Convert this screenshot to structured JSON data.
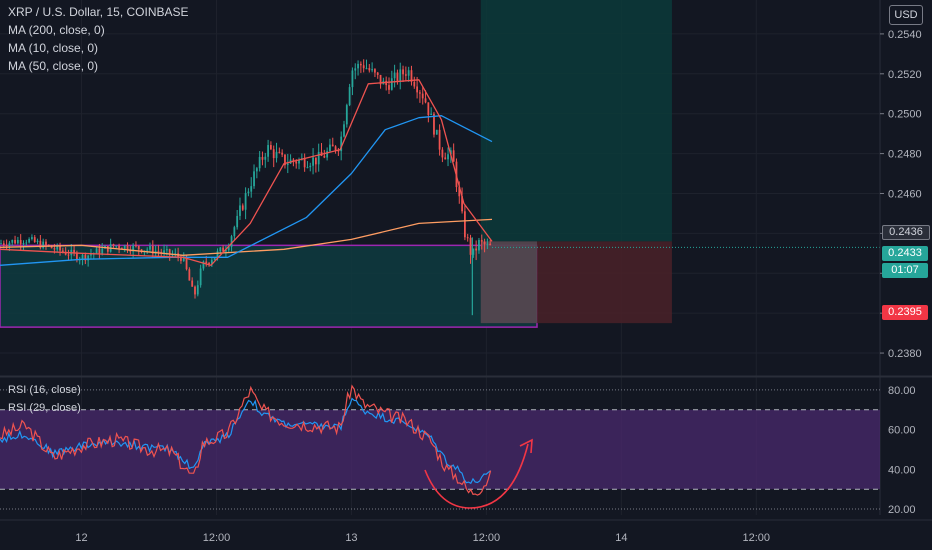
{
  "header": {
    "symbol": "XRP / U.S. Dollar, 15, COINBASE",
    "indicators": [
      "MA (200, close, 0)",
      "MA (10, close, 0)",
      "MA (50, close, 0)"
    ],
    "currency_button": "USD"
  },
  "rsi_legend": [
    "RSI (16, close)",
    "RSI (29, close)"
  ],
  "price_tags": {
    "target": "0.2436",
    "last": "0.2433",
    "countdown": "01:07",
    "stop": "0.2395"
  },
  "colors": {
    "background": "#131722",
    "up_candle": "#26a69a",
    "down_candle": "#ef5350",
    "ma10": "#ef5350",
    "ma50": "#2196f3",
    "ma200": "#ff9d62",
    "rsi_fill": "#4a2a6e",
    "zone_border": "#9c27b0",
    "annotation": "#f23645"
  },
  "chart_data": [
    {
      "type": "candlestick",
      "title": "XRP / U.S. Dollar, 15, COINBASE",
      "x_tick_labels": [
        "12",
        "12:00",
        "13",
        "12:00",
        "14",
        "12:00"
      ],
      "x_range": [
        "2020-06-11T16:45",
        "2020-06-14T23:00"
      ],
      "y_ticks": [
        0.238,
        0.24,
        0.242,
        0.244,
        0.246,
        0.248,
        0.25,
        0.252,
        0.254
      ],
      "y_tick_labels": [
        "0.2380",
        "0.2400",
        "0.2420",
        "0.2440",
        "0.2460",
        "0.2480",
        "0.2500",
        "0.2520",
        "0.2540"
      ],
      "ylim": [
        0.2369,
        0.2557
      ],
      "close_waypoints": [
        {
          "x": "2020-06-11T16:45",
          "y": 0.2435
        },
        {
          "x": "2020-06-11T19:00",
          "y": 0.2437
        },
        {
          "x": "2020-06-12T00:00",
          "y": 0.2428
        },
        {
          "x": "2020-06-12T03:00",
          "y": 0.2434
        },
        {
          "x": "2020-06-12T06:00",
          "y": 0.2432
        },
        {
          "x": "2020-06-12T09:00",
          "y": 0.2428
        },
        {
          "x": "2020-06-12T10:00",
          "y": 0.2408
        },
        {
          "x": "2020-06-12T10:45",
          "y": 0.2424
        },
        {
          "x": "2020-06-12T13:00",
          "y": 0.2434
        },
        {
          "x": "2020-06-12T15:00",
          "y": 0.2465
        },
        {
          "x": "2020-06-12T16:30",
          "y": 0.2483
        },
        {
          "x": "2020-06-12T18:00",
          "y": 0.2476
        },
        {
          "x": "2020-06-12T21:00",
          "y": 0.2477
        },
        {
          "x": "2020-06-12T23:00",
          "y": 0.2485
        },
        {
          "x": "2020-06-13T00:00",
          "y": 0.2522
        },
        {
          "x": "2020-06-13T01:00",
          "y": 0.2525
        },
        {
          "x": "2020-06-13T03:00",
          "y": 0.2514
        },
        {
          "x": "2020-06-13T05:00",
          "y": 0.2522
        },
        {
          "x": "2020-06-13T06:30",
          "y": 0.2508
        },
        {
          "x": "2020-06-13T08:00",
          "y": 0.2481
        },
        {
          "x": "2020-06-13T09:00",
          "y": 0.2478
        },
        {
          "x": "2020-06-13T10:00",
          "y": 0.2442
        },
        {
          "x": "2020-06-13T10:45",
          "y": 0.2428
        },
        {
          "x": "2020-06-13T11:15",
          "y": 0.2435
        },
        {
          "x": "2020-06-13T12:30",
          "y": 0.2433
        }
      ],
      "ma10_waypoints": [
        {
          "x": "2020-06-11T16:45",
          "y": 0.2432
        },
        {
          "x": "2020-06-12T00:00",
          "y": 0.243
        },
        {
          "x": "2020-06-12T09:00",
          "y": 0.2428
        },
        {
          "x": "2020-06-12T11:30",
          "y": 0.2424
        },
        {
          "x": "2020-06-12T15:00",
          "y": 0.2445
        },
        {
          "x": "2020-06-12T18:00",
          "y": 0.2475
        },
        {
          "x": "2020-06-12T23:00",
          "y": 0.2482
        },
        {
          "x": "2020-06-13T01:30",
          "y": 0.2515
        },
        {
          "x": "2020-06-13T06:00",
          "y": 0.2517
        },
        {
          "x": "2020-06-13T08:00",
          "y": 0.2497
        },
        {
          "x": "2020-06-13T10:00",
          "y": 0.2455
        },
        {
          "x": "2020-06-13T12:30",
          "y": 0.2436
        }
      ],
      "ma50_waypoints": [
        {
          "x": "2020-06-11T16:45",
          "y": 0.2424
        },
        {
          "x": "2020-06-12T00:00",
          "y": 0.2427
        },
        {
          "x": "2020-06-12T08:00",
          "y": 0.2428
        },
        {
          "x": "2020-06-12T13:00",
          "y": 0.2428
        },
        {
          "x": "2020-06-12T20:00",
          "y": 0.2448
        },
        {
          "x": "2020-06-13T00:00",
          "y": 0.247
        },
        {
          "x": "2020-06-13T03:00",
          "y": 0.2492
        },
        {
          "x": "2020-06-13T06:00",
          "y": 0.2498
        },
        {
          "x": "2020-06-13T08:00",
          "y": 0.2499
        },
        {
          "x": "2020-06-13T12:30",
          "y": 0.2486
        }
      ],
      "ma200_waypoints": [
        {
          "x": "2020-06-11T16:45",
          "y": 0.2433
        },
        {
          "x": "2020-06-12T00:00",
          "y": 0.2434
        },
        {
          "x": "2020-06-12T09:00",
          "y": 0.2429
        },
        {
          "x": "2020-06-12T18:00",
          "y": 0.2432
        },
        {
          "x": "2020-06-13T00:00",
          "y": 0.2437
        },
        {
          "x": "2020-06-13T06:00",
          "y": 0.2445
        },
        {
          "x": "2020-06-13T12:30",
          "y": 0.2447
        }
      ],
      "zones": [
        {
          "kind": "range-box",
          "x_start": "2020-06-11T16:45",
          "x_end": "2020-06-13T16:30",
          "y_top": 0.2434,
          "y_bottom": 0.2393
        },
        {
          "kind": "long-profit",
          "x_start": "2020-06-13T11:30",
          "x_end": "2020-06-14T04:30",
          "y_top": 0.2557,
          "y_bottom": 0.2436
        },
        {
          "kind": "long-risk",
          "x_start": "2020-06-13T11:30",
          "x_end": "2020-06-14T04:30",
          "y_top": 0.2436,
          "y_bottom": 0.2395
        }
      ]
    },
    {
      "type": "line",
      "title": "RSI",
      "y_ticks": [
        20,
        40,
        60,
        80
      ],
      "y_tick_labels": [
        "20.00",
        "40.00",
        "60.00",
        "80.00"
      ],
      "ylim": [
        17,
        86
      ],
      "band": [
        30,
        70
      ],
      "series": [
        {
          "name": "RSI (16, close)",
          "points": [
            {
              "x": "2020-06-11T16:45",
              "y": 57
            },
            {
              "x": "2020-06-11T19:00",
              "y": 62
            },
            {
              "x": "2020-06-11T21:30",
              "y": 46
            },
            {
              "x": "2020-06-12T00:00",
              "y": 52
            },
            {
              "x": "2020-06-12T03:00",
              "y": 55
            },
            {
              "x": "2020-06-12T06:00",
              "y": 50
            },
            {
              "x": "2020-06-12T08:00",
              "y": 49
            },
            {
              "x": "2020-06-12T10:00",
              "y": 35
            },
            {
              "x": "2020-06-12T10:45",
              "y": 53
            },
            {
              "x": "2020-06-12T13:00",
              "y": 58
            },
            {
              "x": "2020-06-12T15:00",
              "y": 80
            },
            {
              "x": "2020-06-12T16:00",
              "y": 70
            },
            {
              "x": "2020-06-12T18:00",
              "y": 64
            },
            {
              "x": "2020-06-12T21:00",
              "y": 62
            },
            {
              "x": "2020-06-12T23:00",
              "y": 61
            },
            {
              "x": "2020-06-13T00:00",
              "y": 82
            },
            {
              "x": "2020-06-13T01:00",
              "y": 73
            },
            {
              "x": "2020-06-13T03:00",
              "y": 68
            },
            {
              "x": "2020-06-13T05:00",
              "y": 64
            },
            {
              "x": "2020-06-13T07:00",
              "y": 55
            },
            {
              "x": "2020-06-13T08:30",
              "y": 40
            },
            {
              "x": "2020-06-13T09:30",
              "y": 36
            },
            {
              "x": "2020-06-13T10:30",
              "y": 28
            },
            {
              "x": "2020-06-13T11:30",
              "y": 31
            },
            {
              "x": "2020-06-13T12:30",
              "y": 37
            }
          ]
        },
        {
          "name": "RSI (29, close)",
          "points": [
            {
              "x": "2020-06-11T16:45",
              "y": 55
            },
            {
              "x": "2020-06-11T19:00",
              "y": 58
            },
            {
              "x": "2020-06-11T21:30",
              "y": 48
            },
            {
              "x": "2020-06-12T00:00",
              "y": 52
            },
            {
              "x": "2020-06-12T03:00",
              "y": 54
            },
            {
              "x": "2020-06-12T06:00",
              "y": 51
            },
            {
              "x": "2020-06-12T08:00",
              "y": 50
            },
            {
              "x": "2020-06-12T10:00",
              "y": 40
            },
            {
              "x": "2020-06-12T10:45",
              "y": 52
            },
            {
              "x": "2020-06-12T13:00",
              "y": 57
            },
            {
              "x": "2020-06-12T15:00",
              "y": 76
            },
            {
              "x": "2020-06-12T16:00",
              "y": 68
            },
            {
              "x": "2020-06-12T18:00",
              "y": 63
            },
            {
              "x": "2020-06-12T21:00",
              "y": 62
            },
            {
              "x": "2020-06-12T23:00",
              "y": 61
            },
            {
              "x": "2020-06-13T00:00",
              "y": 76
            },
            {
              "x": "2020-06-13T01:00",
              "y": 70
            },
            {
              "x": "2020-06-13T03:00",
              "y": 66
            },
            {
              "x": "2020-06-13T05:00",
              "y": 63
            },
            {
              "x": "2020-06-13T07:00",
              "y": 56
            },
            {
              "x": "2020-06-13T08:30",
              "y": 44
            },
            {
              "x": "2020-06-13T09:30",
              "y": 40
            },
            {
              "x": "2020-06-13T10:30",
              "y": 33
            },
            {
              "x": "2020-06-13T11:30",
              "y": 35
            },
            {
              "x": "2020-06-13T12:30",
              "y": 38
            }
          ]
        }
      ]
    }
  ]
}
